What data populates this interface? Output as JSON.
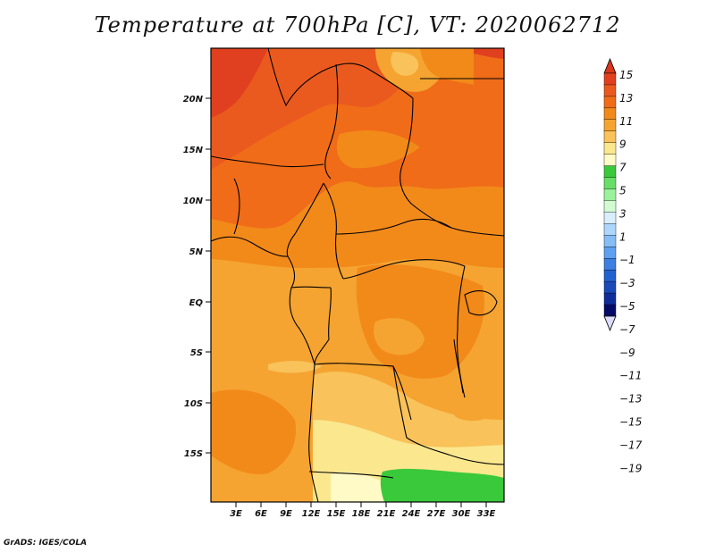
{
  "title": "Temperature at 700hPa [C], VT: 2020062712",
  "credit": "GrADS: IGES/COLA",
  "map": {
    "lat_ticks": [
      "20N",
      "15N",
      "10N",
      "5N",
      "EQ",
      "5S",
      "10S",
      "15S"
    ],
    "lon_ticks": [
      "3E",
      "6E",
      "9E",
      "12E",
      "15E",
      "18E",
      "21E",
      "24E",
      "27E",
      "30E",
      "33E"
    ]
  },
  "colorbar": {
    "labels": [
      "15",
      "13",
      "11",
      "9",
      "7",
      "5",
      "3",
      "1",
      "−1",
      "−3",
      "−5",
      "−7",
      "−9",
      "−11",
      "−13",
      "−15",
      "−17",
      "−19"
    ],
    "colors": [
      "#e0401f",
      "#ea5a1f",
      "#f06c18",
      "#f28a1a",
      "#f5a431",
      "#f9c25a",
      "#fbe78e",
      "#fffac6",
      "#3ac93a",
      "#67de67",
      "#9af29a",
      "#d2fbd2",
      "#d8eefc",
      "#aed5fb",
      "#86bdf5",
      "#5e9ff0",
      "#3c7fe0",
      "#2261d0",
      "#1a49b8",
      "#102c98",
      "#050a66"
    ],
    "top_arrow_color": "#d8371d",
    "bottom_arrow_color": "#dcdcff"
  },
  "palette": {
    "frame": "#000000",
    "temp_15": "#e0401f",
    "temp_13": "#ea5a1f",
    "temp_11": "#f06c18",
    "temp_9": "#f28a1a",
    "temp_7": "#f5a431",
    "temp_5": "#f9c25a",
    "temp_3": "#fbe78e",
    "temp_1": "#fffac6",
    "green": "#3ac93a"
  }
}
